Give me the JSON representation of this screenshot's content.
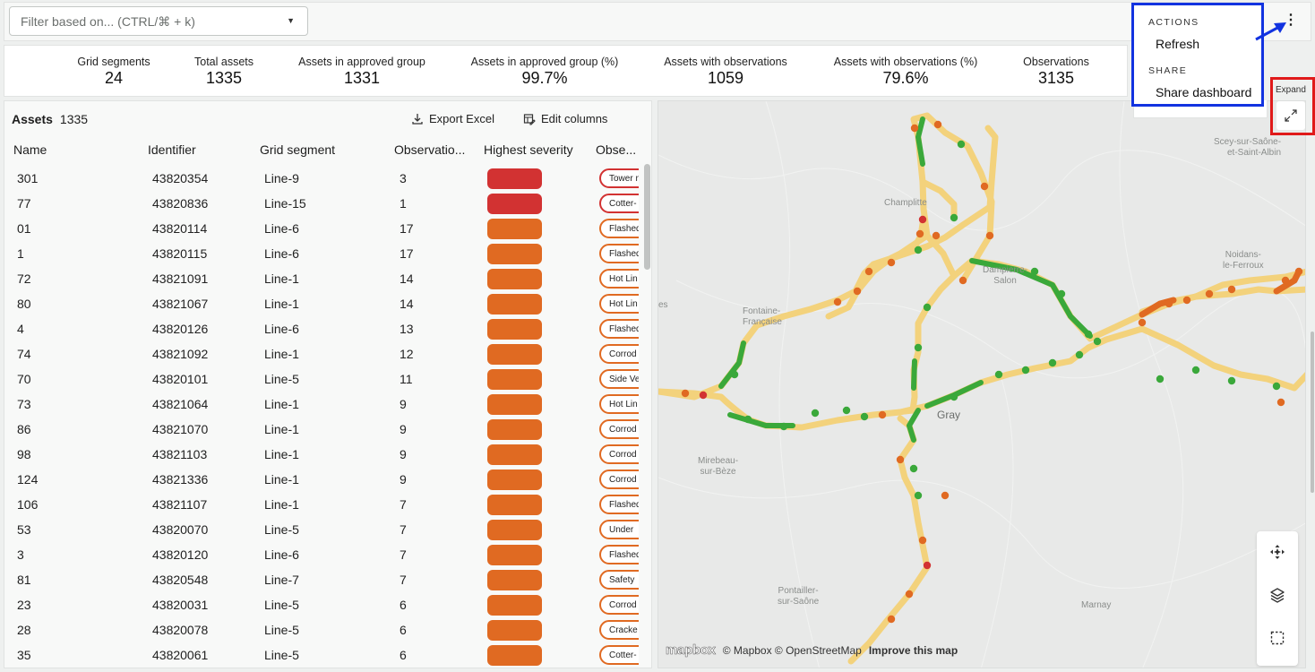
{
  "filter": {
    "placeholder": "Filter based on... (CTRL/⌘ + k)",
    "icon": "caret-down-icon"
  },
  "menu": {
    "actions_heading": "ACTIONS",
    "refresh_label": "Refresh",
    "share_heading": "SHARE",
    "share_dashboard_label": "Share dashboard"
  },
  "expand": {
    "label": "Expand"
  },
  "stats": [
    {
      "label": "Grid segments",
      "value": "24"
    },
    {
      "label": "Total assets",
      "value": "1335"
    },
    {
      "label": "Assets in approved group",
      "value": "1331"
    },
    {
      "label": "Assets in approved group (%)",
      "value": "99.7%"
    },
    {
      "label": "Assets with observations",
      "value": "1059"
    },
    {
      "label": "Assets with observations (%)",
      "value": "79.6%"
    },
    {
      "label": "Observations",
      "value": "3135"
    }
  ],
  "assets": {
    "title": "Assets",
    "count": "1335",
    "export_label": "Export Excel",
    "edit_columns_label": "Edit columns",
    "columns": [
      "Name",
      "Identifier",
      "Grid segment",
      "Observatio...",
      "Highest severity",
      "Obse..."
    ],
    "severity_colors": {
      "critical": "#d23232",
      "high": "#e06a22"
    },
    "rows": [
      {
        "name": "301",
        "id": "43820354",
        "segment": "Line-9",
        "obs": "3",
        "severity": "critical",
        "obs_tag": "Tower n"
      },
      {
        "name": "77",
        "id": "43820836",
        "segment": "Line-15",
        "obs": "1",
        "severity": "critical",
        "obs_tag": "Cotter-"
      },
      {
        "name": "01",
        "id": "43820114",
        "segment": "Line-6",
        "obs": "17",
        "severity": "high",
        "obs_tag": "Flashed"
      },
      {
        "name": "1",
        "id": "43820115",
        "segment": "Line-6",
        "obs": "17",
        "severity": "high",
        "obs_tag": "Flashed"
      },
      {
        "name": "72",
        "id": "43821091",
        "segment": "Line-1",
        "obs": "14",
        "severity": "high",
        "obs_tag": "Hot Lin"
      },
      {
        "name": "80",
        "id": "43821067",
        "segment": "Line-1",
        "obs": "14",
        "severity": "high",
        "obs_tag": "Hot Lin"
      },
      {
        "name": "4",
        "id": "43820126",
        "segment": "Line-6",
        "obs": "13",
        "severity": "high",
        "obs_tag": "Flashed"
      },
      {
        "name": "74",
        "id": "43821092",
        "segment": "Line-1",
        "obs": "12",
        "severity": "high",
        "obs_tag": "Corrod"
      },
      {
        "name": "70",
        "id": "43820101",
        "segment": "Line-5",
        "obs": "11",
        "severity": "high",
        "obs_tag": "Side Ve"
      },
      {
        "name": "73",
        "id": "43821064",
        "segment": "Line-1",
        "obs": "9",
        "severity": "high",
        "obs_tag": "Hot Lin"
      },
      {
        "name": "86",
        "id": "43821070",
        "segment": "Line-1",
        "obs": "9",
        "severity": "high",
        "obs_tag": "Corrod"
      },
      {
        "name": "98",
        "id": "43821103",
        "segment": "Line-1",
        "obs": "9",
        "severity": "high",
        "obs_tag": "Corrod"
      },
      {
        "name": "124",
        "id": "43821336",
        "segment": "Line-1",
        "obs": "9",
        "severity": "high",
        "obs_tag": "Corrod"
      },
      {
        "name": "106",
        "id": "43821107",
        "segment": "Line-1",
        "obs": "7",
        "severity": "high",
        "obs_tag": "Flashed"
      },
      {
        "name": "53",
        "id": "43820070",
        "segment": "Line-5",
        "obs": "7",
        "severity": "high",
        "obs_tag": "Under "
      },
      {
        "name": "3",
        "id": "43820120",
        "segment": "Line-6",
        "obs": "7",
        "severity": "high",
        "obs_tag": "Flashed"
      },
      {
        "name": "81",
        "id": "43820548",
        "segment": "Line-7",
        "obs": "7",
        "severity": "high",
        "obs_tag": "Safety"
      },
      {
        "name": "23",
        "id": "43820031",
        "segment": "Line-5",
        "obs": "6",
        "severity": "high",
        "obs_tag": "Corrod"
      },
      {
        "name": "28",
        "id": "43820078",
        "segment": "Line-5",
        "obs": "6",
        "severity": "high",
        "obs_tag": "Cracke"
      },
      {
        "name": "35",
        "id": "43820061",
        "segment": "Line-5",
        "obs": "6",
        "severity": "high",
        "obs_tag": "Cotter-"
      }
    ]
  },
  "map": {
    "places": [
      {
        "name": "Champlitte"
      },
      {
        "name": "Dampierre-\nSalon"
      },
      {
        "name": "Fontaine-\nFrançaise"
      },
      {
        "name": "Gray"
      },
      {
        "name": "Mirebeau-\nsur-Bèze"
      },
      {
        "name": "Pontailler-\nsur-Saône"
      },
      {
        "name": "Scey-sur-Saône-\net-Saint-Albin"
      },
      {
        "name": "Noidans-\nle-Ferroux"
      },
      {
        "name": "Marnay"
      },
      {
        "name": "es"
      }
    ],
    "attribution": {
      "logo": "mapbox",
      "copyright": "© Mapbox © OpenStreetMap",
      "improve": "Improve this map"
    },
    "controls": [
      "move-icon",
      "layers-icon",
      "select-box-icon"
    ],
    "line_colors": {
      "base": "#f3d27c",
      "good": "#3aa83a",
      "warn": "#e06a22",
      "critical": "#d23232"
    }
  }
}
